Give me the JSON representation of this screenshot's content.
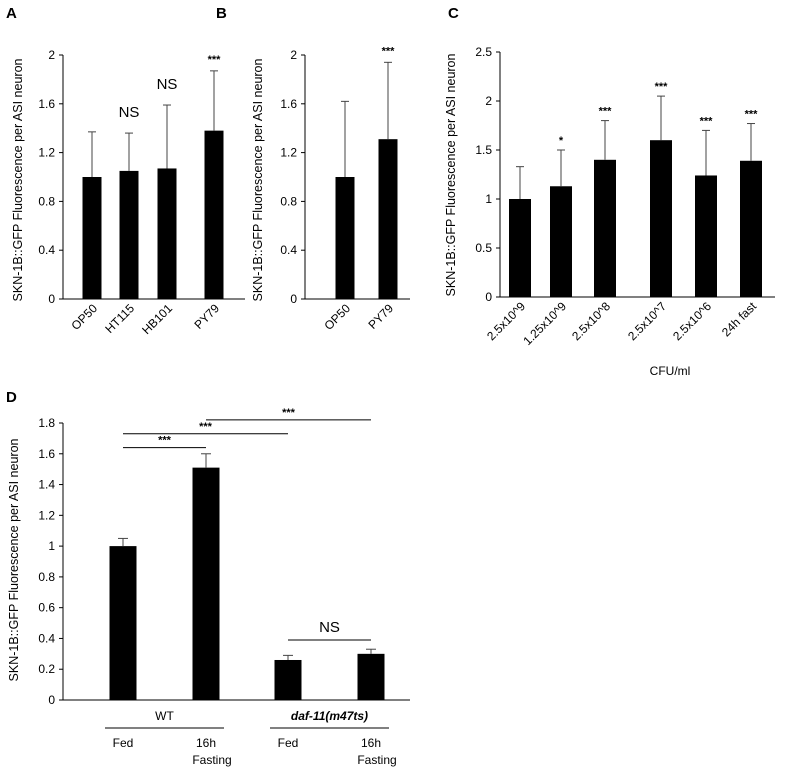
{
  "chart_data": [
    {
      "id": "A",
      "type": "bar",
      "panel_label": "A",
      "categories": [
        "OP50",
        "HT115",
        "HB101",
        "PY79"
      ],
      "values": [
        1.0,
        1.05,
        1.07,
        1.38
      ],
      "errors": [
        0.37,
        0.31,
        0.52,
        0.49
      ],
      "significance": [
        "",
        "NS",
        "NS",
        "***"
      ],
      "ylabel": "SKN-1B::GFP Fluorescence per ASI neuron",
      "xlabel": "",
      "ylim": [
        0,
        2
      ],
      "yticks": [
        0,
        0.4,
        0.8,
        1.2,
        1.6,
        2
      ],
      "ytick_labels": [
        "0",
        "0.4",
        "0.8",
        "1.2",
        "1.6",
        "2"
      ]
    },
    {
      "id": "B",
      "type": "bar",
      "panel_label": "B",
      "categories": [
        "OP50",
        "PY79"
      ],
      "values": [
        1.0,
        1.31
      ],
      "errors": [
        0.62,
        0.63
      ],
      "significance": [
        "",
        "***"
      ],
      "ylabel": "SKN-1B::GFP Fluorescence per ASI neuron",
      "xlabel": "",
      "ylim": [
        0,
        2
      ],
      "yticks": [
        0,
        0.4,
        0.8,
        1.2,
        1.6,
        2
      ],
      "ytick_labels": [
        "0",
        "0.4",
        "0.8",
        "1.2",
        "1.6",
        "2"
      ]
    },
    {
      "id": "C",
      "type": "bar",
      "panel_label": "C",
      "categories": [
        "2.5x10^9",
        "1.25x10^9",
        "2.5x10^8",
        "2.5x10^7",
        "2.5x10^6",
        "24h fast"
      ],
      "values": [
        1.0,
        1.13,
        1.4,
        1.6,
        1.24,
        1.39
      ],
      "errors": [
        0.33,
        0.37,
        0.4,
        0.45,
        0.46,
        0.38
      ],
      "significance": [
        "",
        "*",
        "***",
        "***",
        "***",
        "***"
      ],
      "ylabel": "SKN-1B::GFP Fluorescence per ASI neuron",
      "xlabel": "CFU/ml",
      "ylim": [
        0,
        2.5
      ],
      "yticks": [
        0,
        0.5,
        1,
        1.5,
        2,
        2.5
      ],
      "ytick_labels": [
        "0",
        "0.5",
        "1",
        "1.5",
        "2",
        "2.5"
      ]
    },
    {
      "id": "D",
      "type": "bar",
      "panel_label": "D",
      "categories": [
        "Fed",
        "16h\nFasting",
        "Fed",
        "16h\nFasting"
      ],
      "groups": [
        {
          "label": "WT",
          "italic": false,
          "bars": [
            0,
            1
          ]
        },
        {
          "label": "daf-11(m47ts)",
          "italic": true,
          "bars": [
            2,
            3
          ]
        }
      ],
      "values": [
        1.0,
        1.51,
        0.26,
        0.3
      ],
      "errors": [
        0.05,
        0.09,
        0.03,
        0.03
      ],
      "comparisons": [
        {
          "from": 0,
          "to": 1,
          "y": 1.64,
          "label": "***"
        },
        {
          "from": 0,
          "to": 2,
          "y": 1.73,
          "label": "***"
        },
        {
          "from": 1,
          "to": 3,
          "y": 1.82,
          "label": "***"
        },
        {
          "from": 2,
          "to": 3,
          "y": 0.39,
          "label": "NS"
        }
      ],
      "ylabel": "SKN-1B::GFP Fluorescence per ASI neuron",
      "xlabel": "",
      "ylim": [
        0,
        1.8
      ],
      "yticks": [
        0,
        0.2,
        0.4,
        0.6,
        0.8,
        1,
        1.2,
        1.4,
        1.6,
        1.8
      ],
      "ytick_labels": [
        "0",
        "0.2",
        "0.4",
        "0.6",
        "0.8",
        "1",
        "1.2",
        "1.4",
        "1.6",
        "1.8"
      ]
    }
  ]
}
